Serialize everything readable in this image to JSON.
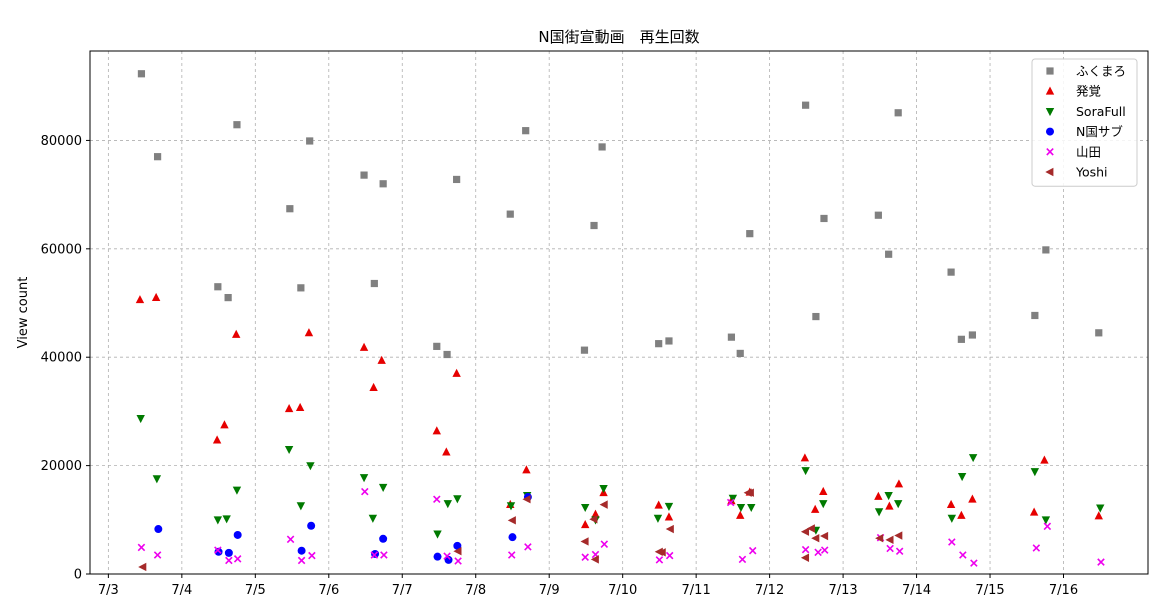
{
  "chart_data": {
    "type": "scatter",
    "title": "N国街宣動画　再生回数",
    "xlabel": "",
    "ylabel": "View count",
    "x_tick_labels": [
      "7/3",
      "7/4",
      "7/5",
      "7/6",
      "7/7",
      "7/8",
      "7/9",
      "7/10",
      "7/11",
      "7/12",
      "7/13",
      "7/14",
      "7/15",
      "7/16"
    ],
    "x_tick_positions": [
      3,
      4,
      5,
      6,
      7,
      8,
      9,
      10,
      11,
      12,
      13,
      14,
      15,
      16
    ],
    "xlim": [
      2.75,
      17.15
    ],
    "ylim": [
      0,
      96500
    ],
    "y_ticks": [
      0,
      20000,
      40000,
      60000,
      80000
    ],
    "y_tick_labels": [
      "0",
      "20000",
      "40000",
      "60000",
      "80000"
    ],
    "grid": true,
    "legend_position": "top-right",
    "series": [
      {
        "name": "ふくまろ",
        "marker": "square",
        "color": "#808080",
        "points": [
          [
            3.45,
            92300
          ],
          [
            3.67,
            77000
          ],
          [
            4.49,
            53000
          ],
          [
            4.63,
            51000
          ],
          [
            4.75,
            82900
          ],
          [
            5.47,
            67400
          ],
          [
            5.62,
            52800
          ],
          [
            5.74,
            79900
          ],
          [
            6.48,
            73600
          ],
          [
            6.62,
            53600
          ],
          [
            6.74,
            72000
          ],
          [
            7.47,
            42000
          ],
          [
            7.61,
            40500
          ],
          [
            7.74,
            72800
          ],
          [
            8.47,
            66400
          ],
          [
            8.68,
            81800
          ],
          [
            9.48,
            41300
          ],
          [
            9.61,
            64300
          ],
          [
            9.72,
            78800
          ],
          [
            10.49,
            42500
          ],
          [
            10.63,
            43000
          ],
          [
            11.48,
            43700
          ],
          [
            11.6,
            40700
          ],
          [
            11.73,
            62800
          ],
          [
            12.49,
            86500
          ],
          [
            12.63,
            47500
          ],
          [
            12.74,
            65600
          ],
          [
            13.48,
            66200
          ],
          [
            13.62,
            59000
          ],
          [
            13.75,
            85100
          ],
          [
            14.47,
            55700
          ],
          [
            14.61,
            43300
          ],
          [
            14.76,
            44100
          ],
          [
            15.61,
            47700
          ],
          [
            15.76,
            59800
          ],
          [
            16.48,
            44500
          ]
        ]
      },
      {
        "name": "発覚",
        "marker": "triangle-up",
        "color": "#e60000",
        "points": [
          [
            3.43,
            50600
          ],
          [
            3.65,
            51000
          ],
          [
            4.48,
            24700
          ],
          [
            4.58,
            27500
          ],
          [
            4.74,
            44200
          ],
          [
            5.46,
            30500
          ],
          [
            5.61,
            30700
          ],
          [
            5.73,
            44500
          ],
          [
            6.48,
            41800
          ],
          [
            6.61,
            34400
          ],
          [
            6.72,
            39400
          ],
          [
            7.47,
            26400
          ],
          [
            7.6,
            22500
          ],
          [
            7.74,
            37000
          ],
          [
            8.47,
            12800
          ],
          [
            8.69,
            19200
          ],
          [
            9.49,
            9100
          ],
          [
            9.63,
            11000
          ],
          [
            9.74,
            15000
          ],
          [
            10.49,
            12700
          ],
          [
            10.63,
            10500
          ],
          [
            11.48,
            13500
          ],
          [
            11.6,
            10800
          ],
          [
            11.73,
            15100
          ],
          [
            12.48,
            21400
          ],
          [
            12.62,
            11900
          ],
          [
            12.73,
            15200
          ],
          [
            13.48,
            14300
          ],
          [
            13.63,
            12500
          ],
          [
            13.76,
            16600
          ],
          [
            14.47,
            12800
          ],
          [
            14.61,
            10800
          ],
          [
            14.76,
            13800
          ],
          [
            15.6,
            11400
          ],
          [
            15.74,
            21000
          ],
          [
            16.48,
            10700
          ]
        ]
      },
      {
        "name": "SoraFull",
        "marker": "triangle-down",
        "color": "#007a00",
        "points": [
          [
            3.44,
            28700
          ],
          [
            3.66,
            17600
          ],
          [
            4.49,
            10000
          ],
          [
            4.61,
            10200
          ],
          [
            4.75,
            15500
          ],
          [
            5.46,
            23000
          ],
          [
            5.62,
            12600
          ],
          [
            5.75,
            20000
          ],
          [
            6.48,
            17800
          ],
          [
            6.6,
            10300
          ],
          [
            6.74,
            16000
          ],
          [
            7.48,
            7400
          ],
          [
            7.62,
            13000
          ],
          [
            7.75,
            13900
          ],
          [
            8.48,
            12600
          ],
          [
            8.7,
            14500
          ],
          [
            9.49,
            12300
          ],
          [
            9.63,
            10000
          ],
          [
            9.74,
            15800
          ],
          [
            10.48,
            10300
          ],
          [
            10.63,
            12500
          ],
          [
            11.5,
            14000
          ],
          [
            11.61,
            12300
          ],
          [
            11.75,
            12300
          ],
          [
            12.49,
            19100
          ],
          [
            12.63,
            8100
          ],
          [
            12.73,
            13000
          ],
          [
            13.49,
            11500
          ],
          [
            13.62,
            14500
          ],
          [
            13.75,
            13000
          ],
          [
            14.48,
            10300
          ],
          [
            14.62,
            18000
          ],
          [
            14.77,
            21500
          ],
          [
            15.61,
            18900
          ],
          [
            15.76,
            10000
          ],
          [
            16.5,
            12200
          ]
        ]
      },
      {
        "name": "N国サブ",
        "marker": "circle",
        "color": "#0000ff",
        "points": [
          [
            3.68,
            8300
          ],
          [
            4.5,
            4100
          ],
          [
            4.64,
            3900
          ],
          [
            4.76,
            7200
          ],
          [
            5.63,
            4300
          ],
          [
            5.76,
            8900
          ],
          [
            6.63,
            3700
          ],
          [
            6.74,
            6500
          ],
          [
            7.48,
            3200
          ],
          [
            7.63,
            2600
          ],
          [
            7.75,
            5200
          ],
          [
            8.5,
            6800
          ],
          [
            8.71,
            14200
          ]
        ]
      },
      {
        "name": "山田",
        "marker": "x",
        "color": "#ee00ee",
        "points": [
          [
            3.45,
            4900
          ],
          [
            3.67,
            3500
          ],
          [
            4.49,
            4400
          ],
          [
            4.64,
            2500
          ],
          [
            4.76,
            2800
          ],
          [
            5.48,
            6400
          ],
          [
            5.63,
            2500
          ],
          [
            5.77,
            3400
          ],
          [
            6.49,
            15200
          ],
          [
            6.62,
            3500
          ],
          [
            6.75,
            3500
          ],
          [
            7.47,
            13800
          ],
          [
            7.61,
            3300
          ],
          [
            7.76,
            2400
          ],
          [
            8.49,
            3500
          ],
          [
            8.71,
            5000
          ],
          [
            9.49,
            3100
          ],
          [
            9.63,
            3600
          ],
          [
            9.75,
            5500
          ],
          [
            10.5,
            2600
          ],
          [
            10.64,
            3400
          ],
          [
            11.47,
            13200
          ],
          [
            11.63,
            2700
          ],
          [
            11.77,
            4300
          ],
          [
            12.49,
            4500
          ],
          [
            12.66,
            4000
          ],
          [
            12.75,
            4400
          ],
          [
            13.51,
            6700
          ],
          [
            13.64,
            4700
          ],
          [
            13.77,
            4200
          ],
          [
            14.48,
            5900
          ],
          [
            14.63,
            3500
          ],
          [
            14.78,
            2000
          ],
          [
            15.63,
            4800
          ],
          [
            15.78,
            8800
          ],
          [
            16.51,
            2200
          ]
        ]
      },
      {
        "name": "Yoshi",
        "marker": "triangle-left",
        "color": "#a52a2a",
        "points": [
          [
            3.47,
            1300
          ],
          [
            9.49,
            6000
          ],
          [
            9.61,
            10100
          ],
          [
            9.63,
            2700
          ],
          [
            9.75,
            12800
          ],
          [
            10.5,
            4100
          ],
          [
            10.54,
            4000
          ],
          [
            10.65,
            8300
          ],
          [
            11.71,
            15000
          ],
          [
            11.74,
            15000
          ],
          [
            12.49,
            7800
          ],
          [
            12.49,
            3000
          ],
          [
            12.57,
            8400
          ],
          [
            12.63,
            6600
          ],
          [
            12.75,
            7000
          ],
          [
            13.5,
            6600
          ],
          [
            13.64,
            6300
          ],
          [
            13.76,
            7100
          ],
          [
            8.5,
            9900
          ],
          [
            8.7,
            13800
          ],
          [
            7.76,
            4200
          ]
        ]
      }
    ]
  }
}
